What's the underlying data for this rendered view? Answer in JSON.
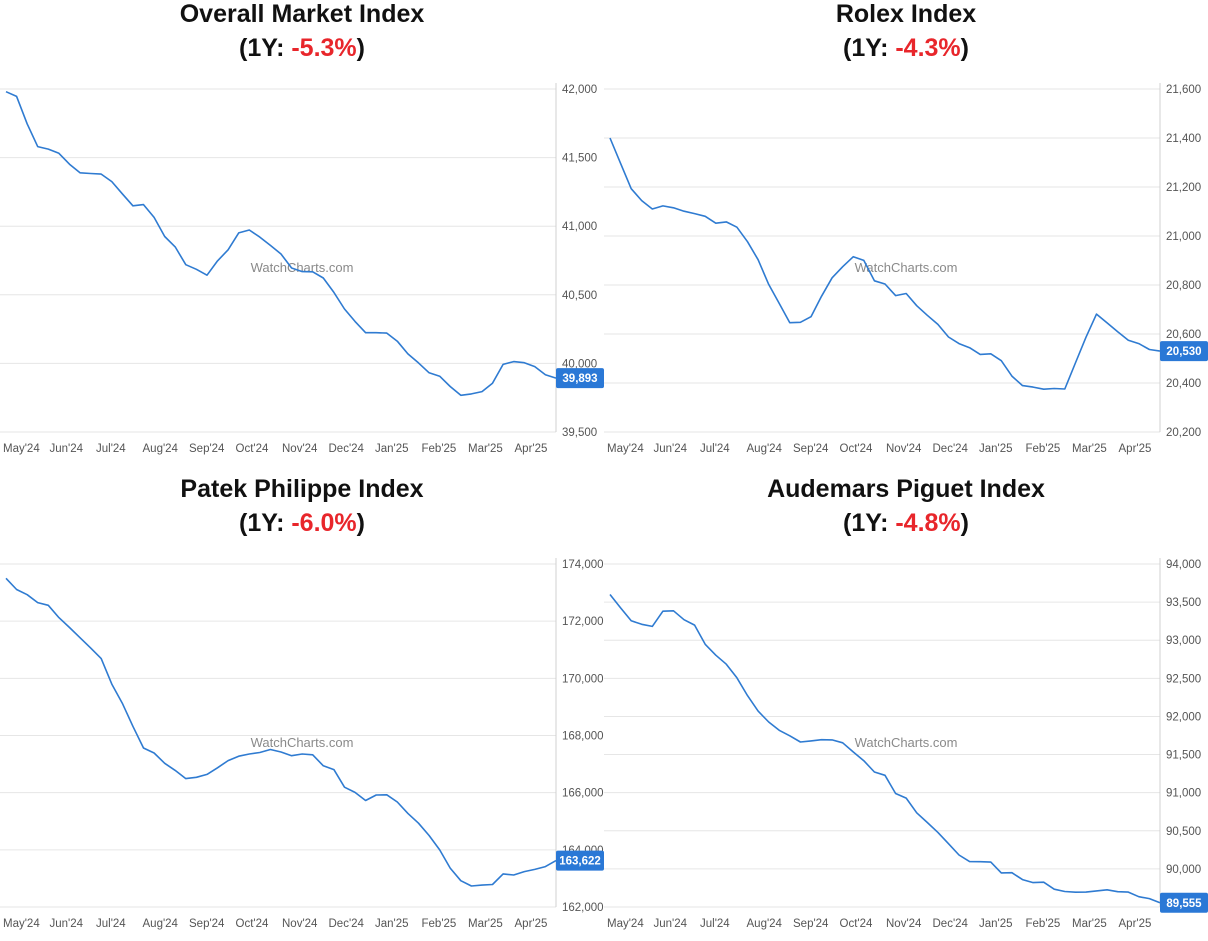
{
  "colors": {
    "line": "#2f7bd1",
    "negative": "#e8262b",
    "grid": "#e6e6e6",
    "badge": "#2a78d6"
  },
  "watermark": "WatchCharts.com",
  "months": [
    "May'24",
    "Jun'24",
    "Jul'24",
    "Aug'24",
    "Sep'24",
    "Oct'24",
    "Nov'24",
    "Dec'24",
    "Jan'25",
    "Feb'25",
    "Mar'25",
    "Apr'25"
  ],
  "chart_data": [
    {
      "type": "line",
      "title": "Overall Market Index",
      "change_prefix": "(1Y: ",
      "change_value": "-5.3%",
      "change_suffix": ")",
      "ylim": [
        39500,
        42000
      ],
      "yticks": [
        "42,000",
        "41,500",
        "41,000",
        "40,500",
        "40,000",
        "39,500"
      ],
      "ytick_values": [
        42000,
        41500,
        41000,
        40500,
        40000,
        39500
      ],
      "last_label": "39,893",
      "last_value": 39893,
      "anchors": [
        [
          0,
          41980
        ],
        [
          0.3,
          41900
        ],
        [
          0.7,
          41550
        ],
        [
          1.0,
          41580
        ],
        [
          1.4,
          41420
        ],
        [
          2.0,
          41380
        ],
        [
          2.5,
          41200
        ],
        [
          3.0,
          41110
        ],
        [
          3.4,
          40900
        ],
        [
          3.8,
          40720
        ],
        [
          4.2,
          40640
        ],
        [
          4.6,
          40780
        ],
        [
          5.0,
          40990
        ],
        [
          5.3,
          40960
        ],
        [
          5.7,
          40830
        ],
        [
          6.1,
          40700
        ],
        [
          6.5,
          40670
        ],
        [
          7.0,
          40470
        ],
        [
          7.5,
          40250
        ],
        [
          8.0,
          40200
        ],
        [
          8.4,
          40100
        ],
        [
          8.8,
          39950
        ],
        [
          9.3,
          39850
        ],
        [
          9.7,
          39760
        ],
        [
          10.1,
          39780
        ],
        [
          10.5,
          40000
        ],
        [
          10.8,
          40050
        ],
        [
          11.1,
          40000
        ],
        [
          11.6,
          39893
        ]
      ]
    },
    {
      "type": "line",
      "title": "Rolex Index",
      "change_prefix": "(1Y: ",
      "change_value": "-4.3%",
      "change_suffix": ")",
      "ylim": [
        20200,
        21600
      ],
      "yticks": [
        "21,600",
        "21,400",
        "21,200",
        "21,000",
        "20,800",
        "20,600",
        "20,400",
        "20,200"
      ],
      "ytick_values": [
        21600,
        21400,
        21200,
        21000,
        20800,
        20600,
        20400,
        20200
      ],
      "last_label": "20,530",
      "last_value": 20530,
      "anchors": [
        [
          0,
          21400
        ],
        [
          0.4,
          21200
        ],
        [
          0.8,
          21120
        ],
        [
          1.2,
          21110
        ],
        [
          1.6,
          21100
        ],
        [
          2.0,
          21080
        ],
        [
          2.4,
          21060
        ],
        [
          2.8,
          21020
        ],
        [
          3.1,
          20900
        ],
        [
          3.5,
          20750
        ],
        [
          3.9,
          20620
        ],
        [
          4.2,
          20650
        ],
        [
          4.6,
          20790
        ],
        [
          5.0,
          20920
        ],
        [
          5.3,
          20900
        ],
        [
          5.6,
          20820
        ],
        [
          6.0,
          20770
        ],
        [
          6.4,
          20740
        ],
        [
          6.8,
          20660
        ],
        [
          7.2,
          20580
        ],
        [
          7.6,
          20540
        ],
        [
          8.0,
          20520
        ],
        [
          8.4,
          20450
        ],
        [
          8.8,
          20380
        ],
        [
          9.2,
          20360
        ],
        [
          9.6,
          20390
        ],
        [
          10.0,
          20560
        ],
        [
          10.3,
          20690
        ],
        [
          10.6,
          20640
        ],
        [
          10.9,
          20560
        ],
        [
          11.3,
          20540
        ],
        [
          11.6,
          20530
        ]
      ]
    },
    {
      "type": "line",
      "title": "Patek Philippe Index",
      "change_prefix": "(1Y: ",
      "change_value": "-6.0%",
      "change_suffix": ")",
      "ylim": [
        162000,
        174000
      ],
      "yticks": [
        "174,000",
        "172,000",
        "170,000",
        "168,000",
        "166,000",
        "164,000",
        "162,000"
      ],
      "ytick_values": [
        174000,
        172000,
        170000,
        168000,
        166000,
        164000,
        162000
      ],
      "last_label": "163,622",
      "last_value": 163622,
      "anchors": [
        [
          0,
          173500
        ],
        [
          0.5,
          172900
        ],
        [
          1.0,
          172300
        ],
        [
          1.5,
          171500
        ],
        [
          2.0,
          170700
        ],
        [
          2.4,
          169200
        ],
        [
          2.8,
          167800
        ],
        [
          3.2,
          167200
        ],
        [
          3.6,
          166600
        ],
        [
          4.0,
          166400
        ],
        [
          4.5,
          166900
        ],
        [
          5.0,
          167500
        ],
        [
          5.5,
          167400
        ],
        [
          6.0,
          167400
        ],
        [
          6.4,
          167300
        ],
        [
          6.8,
          167000
        ],
        [
          7.2,
          166200
        ],
        [
          7.6,
          165800
        ],
        [
          8.0,
          165900
        ],
        [
          8.4,
          165400
        ],
        [
          8.8,
          164800
        ],
        [
          9.2,
          163900
        ],
        [
          9.6,
          162900
        ],
        [
          10.0,
          162600
        ],
        [
          10.4,
          163000
        ],
        [
          10.8,
          163100
        ],
        [
          11.2,
          163300
        ],
        [
          11.6,
          163622
        ]
      ]
    },
    {
      "type": "line",
      "title": "Audemars Piguet Index",
      "change_prefix": "(1Y: ",
      "change_value": "-4.8%",
      "change_suffix": ")",
      "ylim": [
        89500,
        94000
      ],
      "yticks": [
        "94,000",
        "93,500",
        "93,000",
        "92,500",
        "92,000",
        "91,500",
        "91,000",
        "90,500",
        "90,000",
        "89,500"
      ],
      "ytick_values": [
        94000,
        93500,
        93000,
        92500,
        92000,
        91500,
        91000,
        90500,
        90000,
        89500
      ],
      "last_label": "89,555",
      "last_value": 89555,
      "anchors": [
        [
          0,
          93600
        ],
        [
          0.4,
          93300
        ],
        [
          0.8,
          93100
        ],
        [
          1.2,
          93400
        ],
        [
          1.6,
          93300
        ],
        [
          2.0,
          93000
        ],
        [
          2.4,
          92700
        ],
        [
          2.8,
          92400
        ],
        [
          3.2,
          92050
        ],
        [
          3.6,
          91800
        ],
        [
          4.0,
          91700
        ],
        [
          4.4,
          91750
        ],
        [
          4.8,
          91650
        ],
        [
          5.2,
          91550
        ],
        [
          5.6,
          91300
        ],
        [
          6.0,
          91050
        ],
        [
          6.4,
          90800
        ],
        [
          6.8,
          90500
        ],
        [
          7.2,
          90300
        ],
        [
          7.6,
          90100
        ],
        [
          8.0,
          90050
        ],
        [
          8.4,
          89950
        ],
        [
          8.8,
          89850
        ],
        [
          9.2,
          89800
        ],
        [
          9.6,
          89750
        ],
        [
          10.0,
          89700
        ],
        [
          10.4,
          89750
        ],
        [
          10.8,
          89700
        ],
        [
          11.2,
          89650
        ],
        [
          11.6,
          89555
        ]
      ]
    }
  ]
}
